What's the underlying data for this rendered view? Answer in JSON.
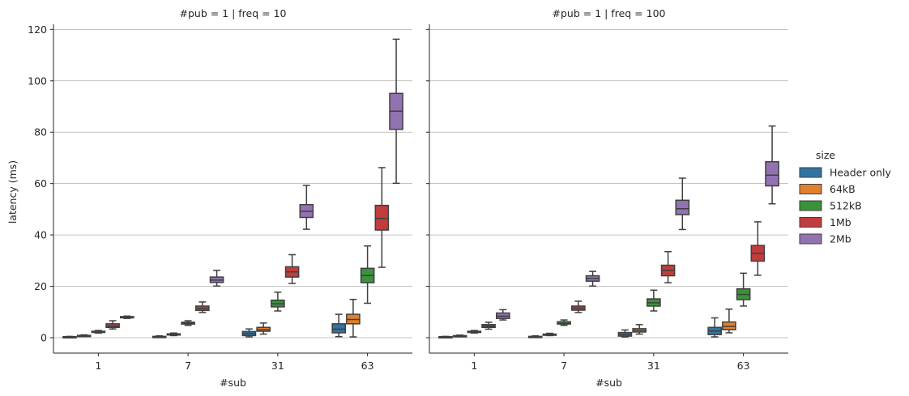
{
  "chart_data": {
    "type": "boxplot",
    "shared": {
      "categories": [
        "1",
        "7",
        "31",
        "63"
      ],
      "xlabel": "#sub",
      "ylabel": "latency (ms)",
      "ylim": [
        -6,
        122
      ],
      "yticks": [
        0,
        20,
        40,
        60,
        80,
        100,
        120
      ],
      "grid": "horizontal",
      "legend": {
        "title": "size",
        "position": "right",
        "entries": [
          "Header only",
          "64kB",
          "512kB",
          "1Mb",
          "2Mb"
        ]
      }
    },
    "colors": {
      "Header only": "#3274a1",
      "64kB": "#e1812c",
      "512kB": "#3a923a",
      "1Mb": "#c03d3e",
      "2Mb": "#9372b2",
      "line": "#3f3f3f",
      "grid": "#b0b0b0"
    },
    "panels": [
      {
        "title": "#pub = 1 | freq = 10",
        "stats": [
          [
            {
              "series": "Header only",
              "min": 0.1,
              "q1": 0.2,
              "median": 0.3,
              "q3": 0.4,
              "max": 0.5
            },
            {
              "series": "64kB",
              "min": 0.5,
              "q1": 0.7,
              "median": 0.8,
              "q3": 0.9,
              "max": 1.1
            },
            {
              "series": "512kB",
              "min": 1.8,
              "q1": 2.1,
              "median": 2.3,
              "q3": 2.5,
              "max": 2.8
            },
            {
              "series": "1Mb",
              "min": 3.4,
              "q1": 4.0,
              "median": 4.5,
              "q3": 5.4,
              "max": 6.6
            },
            {
              "series": "2Mb",
              "min": 7.5,
              "q1": 7.8,
              "median": 8.0,
              "q3": 8.2,
              "max": 8.4
            }
          ],
          [
            {
              "series": "Header only",
              "min": 0.1,
              "q1": 0.2,
              "median": 0.3,
              "q3": 0.5,
              "max": 0.7
            },
            {
              "series": "64kB",
              "min": 0.8,
              "q1": 1.1,
              "median": 1.3,
              "q3": 1.5,
              "max": 1.8
            },
            {
              "series": "512kB",
              "min": 4.8,
              "q1": 5.3,
              "median": 5.6,
              "q3": 6.0,
              "max": 6.6
            },
            {
              "series": "1Mb",
              "min": 9.8,
              "q1": 10.6,
              "median": 11.4,
              "q3": 12.3,
              "max": 13.9
            },
            {
              "series": "2Mb",
              "min": 20.1,
              "q1": 21.5,
              "median": 22.4,
              "q3": 23.6,
              "max": 26.2
            }
          ],
          [
            {
              "series": "Header only",
              "min": 0.3,
              "q1": 0.8,
              "median": 1.6,
              "q3": 2.4,
              "max": 3.4
            },
            {
              "series": "64kB",
              "min": 1.4,
              "q1": 2.5,
              "median": 3.1,
              "q3": 4.0,
              "max": 5.7
            },
            {
              "series": "512kB",
              "min": 10.4,
              "q1": 12.0,
              "median": 13.2,
              "q3": 14.6,
              "max": 17.7
            },
            {
              "series": "1Mb",
              "min": 21.1,
              "q1": 23.6,
              "median": 25.6,
              "q3": 27.6,
              "max": 32.3
            },
            {
              "series": "2Mb",
              "min": 42.2,
              "q1": 46.8,
              "median": 49.2,
              "q3": 51.8,
              "max": 59.3
            }
          ],
          [
            {
              "series": "Header only",
              "min": 0.4,
              "q1": 1.9,
              "median": 3.3,
              "q3": 5.4,
              "max": 9.1
            },
            {
              "series": "64kB",
              "min": 0.3,
              "q1": 5.4,
              "median": 7.1,
              "q3": 9.1,
              "max": 14.9
            },
            {
              "series": "512kB",
              "min": 13.4,
              "q1": 21.4,
              "median": 24.2,
              "q3": 27.0,
              "max": 35.7
            },
            {
              "series": "1Mb",
              "min": 27.4,
              "q1": 41.9,
              "median": 46.4,
              "q3": 51.5,
              "max": 66.2
            },
            {
              "series": "2Mb",
              "min": 60.1,
              "q1": 81.1,
              "median": 88.2,
              "q3": 95.1,
              "max": 116.2
            }
          ]
        ]
      },
      {
        "title": "#pub = 1 | freq = 100",
        "stats": [
          [
            {
              "series": "Header only",
              "min": 0.1,
              "q1": 0.2,
              "median": 0.3,
              "q3": 0.4,
              "max": 0.5
            },
            {
              "series": "64kB",
              "min": 0.4,
              "q1": 0.6,
              "median": 0.7,
              "q3": 0.8,
              "max": 1.0
            },
            {
              "series": "512kB",
              "min": 1.8,
              "q1": 2.1,
              "median": 2.3,
              "q3": 2.5,
              "max": 2.8
            },
            {
              "series": "1Mb",
              "min": 3.3,
              "q1": 4.0,
              "median": 4.5,
              "q3": 5.1,
              "max": 6.0
            },
            {
              "series": "2Mb",
              "min": 6.9,
              "q1": 7.5,
              "median": 8.4,
              "q3": 9.6,
              "max": 10.9
            }
          ],
          [
            {
              "series": "Header only",
              "min": 0.1,
              "q1": 0.2,
              "median": 0.3,
              "q3": 0.5,
              "max": 0.7
            },
            {
              "series": "64kB",
              "min": 0.8,
              "q1": 1.0,
              "median": 1.2,
              "q3": 1.4,
              "max": 1.7
            },
            {
              "series": "512kB",
              "min": 4.8,
              "q1": 5.3,
              "median": 5.6,
              "q3": 6.2,
              "max": 6.9
            },
            {
              "series": "1Mb",
              "min": 9.8,
              "q1": 10.7,
              "median": 11.5,
              "q3": 12.3,
              "max": 14.2
            },
            {
              "series": "2Mb",
              "min": 20.1,
              "q1": 22.0,
              "median": 23.1,
              "q3": 24.1,
              "max": 25.8
            }
          ],
          [
            {
              "series": "Header only",
              "min": 0.3,
              "q1": 0.6,
              "median": 1.2,
              "q3": 2.0,
              "max": 3.0
            },
            {
              "series": "64kB",
              "min": 1.4,
              "q1": 2.2,
              "median": 2.8,
              "q3": 3.5,
              "max": 5.1
            },
            {
              "series": "512kB",
              "min": 10.4,
              "q1": 12.3,
              "median": 13.6,
              "q3": 15.1,
              "max": 18.5
            },
            {
              "series": "1Mb",
              "min": 21.4,
              "q1": 24.1,
              "median": 26.2,
              "q3": 28.2,
              "max": 33.5
            },
            {
              "series": "2Mb",
              "min": 42.1,
              "q1": 47.9,
              "median": 50.2,
              "q3": 53.5,
              "max": 62.1
            }
          ],
          [
            {
              "series": "Header only",
              "min": 0.3,
              "q1": 1.2,
              "median": 2.6,
              "q3": 4.0,
              "max": 7.7
            },
            {
              "series": "64kB",
              "min": 1.9,
              "q1": 3.1,
              "median": 4.4,
              "q3": 6.1,
              "max": 11.1
            },
            {
              "series": "512kB",
              "min": 12.3,
              "q1": 14.8,
              "median": 16.8,
              "q3": 19.0,
              "max": 25.1
            },
            {
              "series": "1Mb",
              "min": 24.3,
              "q1": 29.8,
              "median": 32.8,
              "q3": 35.9,
              "max": 45.1
            },
            {
              "series": "2Mb",
              "min": 52.1,
              "q1": 59.1,
              "median": 63.3,
              "q3": 68.5,
              "max": 82.4
            }
          ]
        ]
      }
    ]
  }
}
